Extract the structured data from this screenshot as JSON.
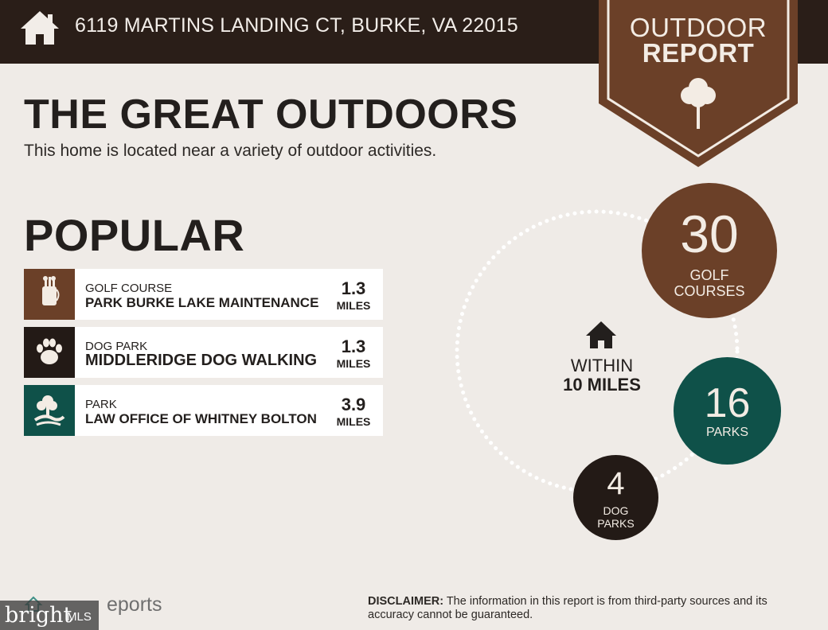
{
  "header": {
    "address": "6119 MARTINS LANDING CT, BURKE, VA 22015",
    "badge_line1": "OUTDOOR",
    "badge_line2": "REPORT"
  },
  "intro": {
    "title": "THE GREAT OUTDOORS",
    "subtitle": "This home is located near a variety of outdoor activities."
  },
  "popular": {
    "heading": "POPULAR",
    "items": [
      {
        "category": "GOLF COURSE",
        "name": "PARK BURKE LAKE MAINTENANCE",
        "distance": "1.3",
        "unit": "MILES",
        "icon": "golf-bag-icon",
        "color": "#6b4028"
      },
      {
        "category": "DOG PARK",
        "name": "MIDDLERIDGE DOG WALKING",
        "distance": "1.3",
        "unit": "MILES",
        "icon": "paw-icon",
        "color": "#231a16"
      },
      {
        "category": "PARK",
        "name": "LAW OFFICE OF WHITNEY BOLTON",
        "distance": "3.9",
        "unit": "MILES",
        "icon": "tree-icon",
        "color": "#0f5149"
      }
    ]
  },
  "radius": {
    "line1": "WITHIN",
    "line2": "10 MILES"
  },
  "stats": {
    "golf": {
      "count": "30",
      "label_line1": "GOLF",
      "label_line2": "COURSES",
      "color": "#6b4028"
    },
    "parks": {
      "count": "16",
      "label": "PARKS",
      "color": "#0f5149"
    },
    "dog": {
      "count": "4",
      "label_line1": "DOG",
      "label_line2": "PARKS",
      "color": "#231a16"
    }
  },
  "footer": {
    "brand": "eports",
    "watermark_left": "bright",
    "watermark_right": "MLS",
    "disclaimer_label": "DISCLAIMER:",
    "disclaimer_text": " The information in this report is from third-party sources and its accuracy cannot be guaranteed."
  },
  "colors": {
    "background": "#efebe7",
    "topbar": "#2a1e18",
    "brown": "#6b4028",
    "teal": "#0f5149",
    "dark": "#231a16"
  }
}
